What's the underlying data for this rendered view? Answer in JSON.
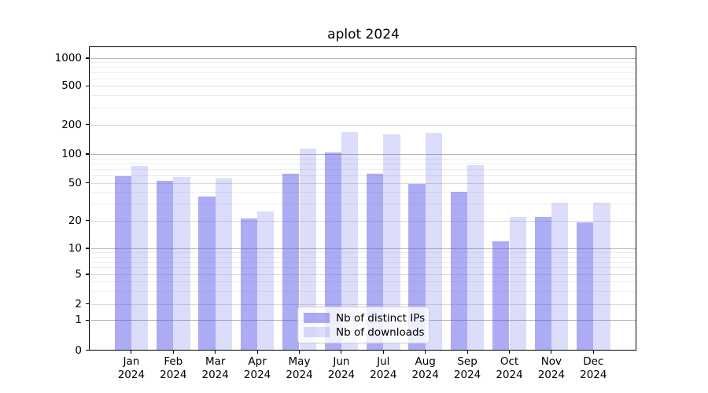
{
  "title": "aplot 2024",
  "chart_data": {
    "type": "bar",
    "title": "aplot 2024",
    "categories": [
      "Jan",
      "Feb",
      "Mar",
      "Apr",
      "May",
      "Jun",
      "Jul",
      "Aug",
      "Sep",
      "Oct",
      "Nov",
      "Dec"
    ],
    "xtick_year": "2024",
    "series": [
      {
        "name": "Nb of distinct IPs",
        "base_color": "#5a5aec",
        "fill_alpha": 0.5,
        "values": [
          59,
          53,
          36,
          21,
          62,
          103,
          62,
          49,
          40,
          12,
          22,
          19
        ]
      },
      {
        "name": "Nb of downloads",
        "base_color": "#5a5aec",
        "fill_alpha": 0.21,
        "values": [
          75,
          58,
          56,
          25,
          113,
          167,
          160,
          166,
          77,
          22,
          31,
          31
        ]
      }
    ],
    "yscale": "symlog",
    "ylim": [
      0,
      1300
    ],
    "yticks": [
      0,
      1,
      2,
      5,
      10,
      20,
      50,
      100,
      200,
      500,
      1000
    ],
    "minor_yticks": [
      3,
      4,
      6,
      7,
      8,
      9,
      30,
      40,
      60,
      70,
      80,
      90,
      300,
      400,
      600,
      700,
      800,
      900
    ],
    "grid": true,
    "legend_position": "lower center",
    "xlabel": "",
    "ylabel": ""
  }
}
